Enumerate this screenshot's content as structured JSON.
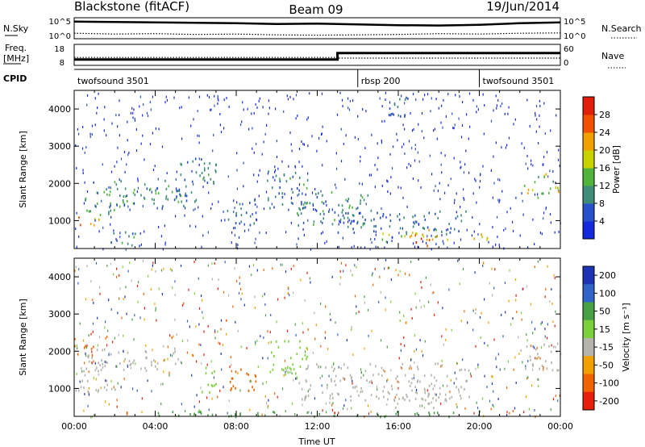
{
  "header": {
    "station": "Blackstone (fitACF)",
    "beam": "Beam 09",
    "date": "19/Jun/2014"
  },
  "side_labels": {
    "nsky": "N.Sky",
    "nsearch": "N.Search",
    "freq_line1": "Freq.",
    "freq_line2": "[MHz]",
    "nave": "Nave",
    "cpid": "CPID"
  },
  "noise_axis": {
    "left_top": "10^5",
    "left_bottom": "10^0",
    "right_top": "10^5",
    "right_bottom": "10^0"
  },
  "freq_axis": {
    "left_top": "18",
    "left_bottom": "8",
    "right_top": "60",
    "right_bottom": "0"
  },
  "cpid_segments": [
    {
      "label": "twofsound 3501",
      "start_hour": 0,
      "end_hour": 14.0
    },
    {
      "label": "rbsp 200",
      "start_hour": 14.0,
      "end_hour": 20.0
    },
    {
      "label": "twofsound 3501",
      "start_hour": 20.0,
      "end_hour": 24.0
    }
  ],
  "chart_data": [
    {
      "type": "line",
      "panel": "noise",
      "series": [
        {
          "name": "N.Sky",
          "hours": [
            0,
            2,
            4,
            6,
            8,
            10,
            12,
            14,
            16,
            18,
            20,
            22,
            24
          ],
          "log10_values": [
            4.2,
            4.1,
            4.0,
            3.9,
            3.8,
            3.6,
            3.7,
            3.5,
            3.3,
            3.2,
            3.4,
            3.8,
            4.0
          ]
        },
        {
          "name": "N.Search",
          "hours": [
            0,
            2,
            4,
            6,
            8,
            10,
            12,
            14,
            16,
            18,
            20,
            22,
            24
          ],
          "log10_values": [
            1.2,
            1.0,
            1.1,
            0.9,
            1.0,
            0.8,
            0.7,
            0.8,
            0.9,
            1.1,
            1.0,
            1.2,
            1.3
          ]
        }
      ]
    },
    {
      "type": "line",
      "panel": "frequency",
      "series": [
        {
          "name": "Freq.",
          "hours": [
            0,
            13.0,
            13.0,
            20.0,
            20.0,
            24
          ],
          "values": [
            10.6,
            10.6,
            13.9,
            13.9,
            13.9,
            13.9
          ]
        },
        {
          "name": "Nave",
          "hours": [
            0,
            13.0,
            13.0,
            24
          ],
          "values": [
            22,
            22,
            20,
            20
          ]
        }
      ]
    },
    {
      "type": "heatmap",
      "panel": "power",
      "xlabel": "",
      "ylabel": "Slant Range [km]",
      "xlim": [
        0,
        24
      ],
      "ylim": [
        250,
        4500
      ],
      "yticks": [
        1000,
        2000,
        3000,
        4000
      ],
      "colorbar": {
        "label": "Power [dB]",
        "range": [
          0,
          32
        ],
        "ticks": [
          4,
          8,
          12,
          16,
          20,
          24,
          28
        ]
      },
      "echo_regions": [
        {
          "t0": 0.0,
          "t1": 1.2,
          "r0": 850,
          "r1": 1150,
          "peak": 26
        },
        {
          "t0": 0.2,
          "t1": 2.0,
          "r0": 1150,
          "r1": 1500,
          "peak": 14
        },
        {
          "t0": 0.5,
          "t1": 5.5,
          "r0": 1400,
          "r1": 2100,
          "peak": 14
        },
        {
          "t0": 1.5,
          "t1": 3.0,
          "r0": 400,
          "r1": 750,
          "peak": 12
        },
        {
          "t0": 2.5,
          "t1": 3.5,
          "r0": 280,
          "r1": 380,
          "peak": 10
        },
        {
          "t0": 5.0,
          "t1": 7.0,
          "r0": 1500,
          "r1": 2800,
          "peak": 12
        },
        {
          "t0": 7.5,
          "t1": 9.0,
          "r0": 900,
          "r1": 1600,
          "peak": 10
        },
        {
          "t0": 9.5,
          "t1": 11.5,
          "r0": 1200,
          "r1": 2400,
          "peak": 12
        },
        {
          "t0": 11.0,
          "t1": 14.5,
          "r0": 900,
          "r1": 1800,
          "peak": 12
        },
        {
          "t0": 13.0,
          "t1": 19.5,
          "r0": 700,
          "r1": 1300,
          "peak": 10
        },
        {
          "t0": 15.0,
          "t1": 18.5,
          "r0": 450,
          "r1": 800,
          "peak": 22
        },
        {
          "t0": 16.5,
          "t1": 18.0,
          "r0": 350,
          "r1": 650,
          "peak": 30
        },
        {
          "t0": 19.5,
          "t1": 20.6,
          "r0": 450,
          "r1": 700,
          "peak": 24
        },
        {
          "t0": 22.2,
          "t1": 24.0,
          "r0": 1600,
          "r1": 2300,
          "peak": 22
        },
        {
          "t0": 15.5,
          "t1": 16.5,
          "r0": 3500,
          "r1": 4400,
          "peak": 10
        }
      ]
    },
    {
      "type": "heatmap",
      "panel": "velocity",
      "xlabel": "Time UT",
      "ylabel": "Slant Range [km]",
      "xlim": [
        0,
        24
      ],
      "ylim": [
        250,
        4500
      ],
      "yticks": [
        1000,
        2000,
        3000,
        4000
      ],
      "xticks": [
        "00:00",
        "04:00",
        "08:00",
        "12:00",
        "16:00",
        "20:00",
        "00:00"
      ],
      "colorbar": {
        "label": "Velocity [m s⁻¹]",
        "ticks": [
          "200",
          "100",
          "50",
          "15",
          "-15",
          "-50",
          "-100",
          "-200"
        ]
      },
      "echo_regions": [
        {
          "t0": 0.0,
          "t1": 2.0,
          "r0": 850,
          "r1": 1600,
          "vel": 0
        },
        {
          "t0": 0.5,
          "t1": 5.5,
          "r0": 1500,
          "r1": 2100,
          "vel": 5
        },
        {
          "t0": 0.0,
          "t1": 1.0,
          "r0": 1900,
          "r1": 2300,
          "vel": -60
        },
        {
          "t0": 2.5,
          "t1": 3.5,
          "r0": 280,
          "r1": 400,
          "vel": -60
        },
        {
          "t0": 6.2,
          "t1": 7.0,
          "r0": 900,
          "r1": 1700,
          "vel": 40
        },
        {
          "t0": 7.5,
          "t1": 9.0,
          "r0": 900,
          "r1": 1600,
          "vel": -60
        },
        {
          "t0": 9.5,
          "t1": 11.5,
          "r0": 1300,
          "r1": 2300,
          "vel": 30
        },
        {
          "t0": 11.0,
          "t1": 19.5,
          "r0": 700,
          "r1": 1700,
          "vel": 0
        },
        {
          "t0": 15.0,
          "t1": 18.5,
          "r0": 500,
          "r1": 900,
          "vel": 0
        },
        {
          "t0": 22.0,
          "t1": 24.0,
          "r0": 1500,
          "r1": 2300,
          "vel": 0
        },
        {
          "t0": 4.0,
          "t1": 20.0,
          "r0": 260,
          "r1": 420,
          "vel": 60
        }
      ]
    }
  ],
  "colors": {
    "power_scale": [
      "#1428dc",
      "#2850c8",
      "#3c8c78",
      "#50b43c",
      "#c8d200",
      "#f0a000",
      "#f05000",
      "#e01e0a"
    ],
    "velocity_scale": [
      "#1e32b4",
      "#3264c8",
      "#46a046",
      "#7cd03c",
      "#b4b4aa",
      "#f0a000",
      "#f06400",
      "#e61e0a"
    ]
  }
}
